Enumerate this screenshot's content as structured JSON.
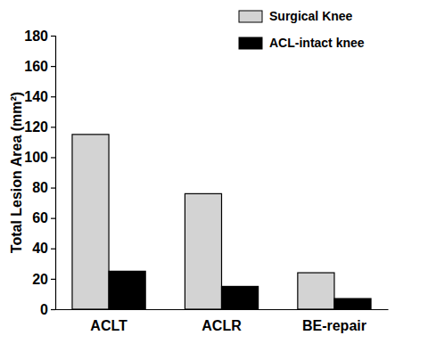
{
  "chart_data": {
    "type": "bar",
    "y_label": "Total Lesion Area (mm²)",
    "categories": [
      "ACLT",
      "ACLR",
      "BE-repair"
    ],
    "series": [
      {
        "name": "Surgical Knee",
        "color": "#d3d3d3",
        "values": [
          115,
          76,
          24
        ]
      },
      {
        "name": "ACL-intact knee",
        "color": "#000000",
        "values": [
          25,
          15,
          7
        ]
      }
    ],
    "ylim": [
      0,
      180
    ],
    "yticks": [
      0,
      20,
      40,
      60,
      80,
      100,
      120,
      140,
      160,
      180
    ],
    "legend": "upper right",
    "grid": false
  }
}
